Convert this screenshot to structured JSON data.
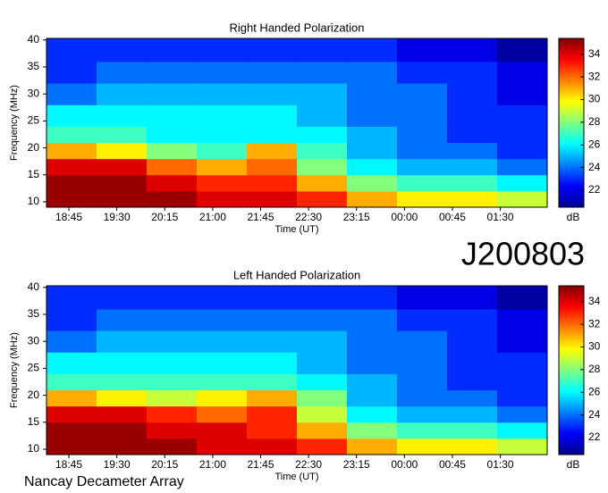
{
  "page": {
    "label": "J200803",
    "footer": "Nancay Decameter Array"
  },
  "chart_data": [
    {
      "type": "heatmap",
      "title": "Right Handed Polarization",
      "xlabel": "Time (UT)",
      "ylabel": "Frequency (MHz)",
      "colorbar_label": "dB",
      "x_bins": [
        24,
        71,
        118,
        165,
        212,
        259,
        306,
        353,
        400,
        447,
        494
      ],
      "y_bins": [
        9,
        12,
        15,
        18,
        21,
        24,
        28,
        32,
        36,
        40.3
      ],
      "z": [
        [
          35,
          35,
          35,
          34,
          34,
          33,
          31,
          30,
          30,
          29
        ],
        [
          35,
          35,
          34,
          33,
          33,
          31,
          28,
          27,
          27,
          26
        ],
        [
          34,
          34,
          32,
          31,
          32,
          28,
          26,
          25,
          25,
          24
        ],
        [
          31,
          30,
          28,
          27,
          31,
          27,
          25,
          24,
          24,
          23
        ],
        [
          27,
          27,
          26,
          26,
          26,
          26,
          25,
          24,
          23,
          23
        ],
        [
          26,
          26,
          26,
          26,
          26,
          25,
          24,
          24,
          23,
          23
        ],
        [
          24,
          25,
          25,
          25,
          25,
          25,
          24,
          24,
          23,
          22
        ],
        [
          23,
          24,
          24,
          24,
          24,
          24,
          24,
          23,
          23,
          22
        ],
        [
          23,
          23,
          23,
          23,
          23,
          23,
          23,
          22,
          22,
          21
        ]
      ],
      "xlim": [
        24,
        494
      ],
      "xticks": [
        {
          "value": 45,
          "label": "18:45"
        },
        {
          "value": 90,
          "label": "19:30"
        },
        {
          "value": 135,
          "label": "20:15"
        },
        {
          "value": 180,
          "label": "21:00"
        },
        {
          "value": 225,
          "label": "21:45"
        },
        {
          "value": 270,
          "label": "22:30"
        },
        {
          "value": 315,
          "label": "23:15"
        },
        {
          "value": 360,
          "label": "00:00"
        },
        {
          "value": 405,
          "label": "00:45"
        },
        {
          "value": 450,
          "label": "01:30"
        }
      ],
      "ylim": [
        9,
        40.3
      ],
      "yticks": [
        10,
        15,
        20,
        25,
        30,
        35,
        40
      ],
      "clim": [
        20.5,
        35.4
      ],
      "cticks": [
        22,
        24,
        26,
        28,
        30,
        32,
        34
      ],
      "colormap": "jet"
    },
    {
      "type": "heatmap",
      "title": "Left Handed Polarization",
      "xlabel": "Time (UT)",
      "ylabel": "Frequency (MHz)",
      "colorbar_label": "dB",
      "x_bins": [
        24,
        71,
        118,
        165,
        212,
        259,
        306,
        353,
        400,
        447,
        494
      ],
      "y_bins": [
        9,
        12,
        15,
        18,
        21,
        24,
        28,
        32,
        36,
        40.3
      ],
      "z": [
        [
          35,
          35,
          35,
          34,
          34,
          33,
          31,
          30,
          30,
          29
        ],
        [
          35,
          35,
          34,
          34,
          33,
          31,
          28,
          27,
          27,
          26
        ],
        [
          34,
          34,
          33,
          32,
          33,
          29,
          26,
          25,
          25,
          24
        ],
        [
          31,
          30,
          29,
          30,
          31,
          28,
          25,
          24,
          24,
          23
        ],
        [
          27,
          27,
          27,
          27,
          27,
          26,
          25,
          24,
          23,
          23
        ],
        [
          26,
          26,
          26,
          26,
          26,
          25,
          24,
          24,
          23,
          23
        ],
        [
          24,
          25,
          25,
          25,
          25,
          25,
          24,
          24,
          23,
          22
        ],
        [
          23,
          24,
          24,
          24,
          24,
          24,
          24,
          23,
          23,
          22
        ],
        [
          23,
          23,
          23,
          23,
          23,
          23,
          23,
          22,
          22,
          21
        ]
      ],
      "xlim": [
        24,
        494
      ],
      "xticks": [
        {
          "value": 45,
          "label": "18:45"
        },
        {
          "value": 90,
          "label": "19:30"
        },
        {
          "value": 135,
          "label": "20:15"
        },
        {
          "value": 180,
          "label": "21:00"
        },
        {
          "value": 225,
          "label": "21:45"
        },
        {
          "value": 270,
          "label": "22:30"
        },
        {
          "value": 315,
          "label": "23:15"
        },
        {
          "value": 360,
          "label": "00:00"
        },
        {
          "value": 405,
          "label": "00:45"
        },
        {
          "value": 450,
          "label": "01:30"
        }
      ],
      "ylim": [
        9,
        40.3
      ],
      "yticks": [
        10,
        15,
        20,
        25,
        30,
        35,
        40
      ],
      "clim": [
        20.5,
        35.4
      ],
      "cticks": [
        22,
        24,
        26,
        28,
        30,
        32,
        34
      ],
      "colormap": "jet"
    }
  ]
}
